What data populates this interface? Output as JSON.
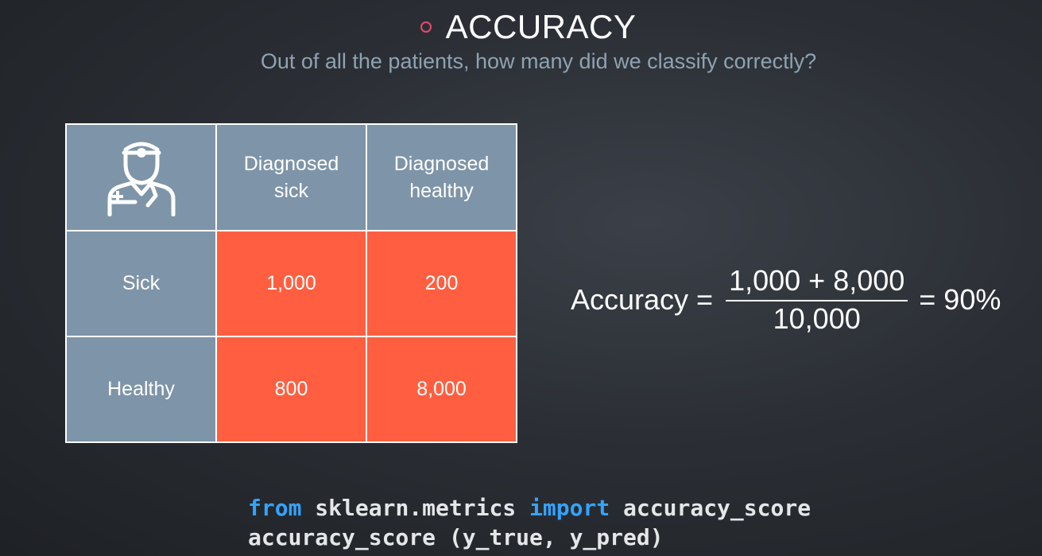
{
  "slide": {
    "title": "ACCURACY",
    "subtitle": "Out of all the patients, how many did we classify correctly?",
    "bullet_color": "#e8496b"
  },
  "matrix": {
    "corner_icon": "doctor-icon",
    "col_headers": [
      [
        "Diagnosed",
        "sick"
      ],
      [
        "Diagnosed",
        "healthy"
      ]
    ],
    "rows": [
      {
        "label": "Sick",
        "values": [
          "1,000",
          "200"
        ]
      },
      {
        "label": "Healthy",
        "values": [
          "800",
          "8,000"
        ]
      }
    ],
    "header_color": "#7e94a8",
    "cell_color": "#ff5f40"
  },
  "formula": {
    "label": "Accuracy =",
    "numerator": "1,000 + 8,000",
    "denominator": "10,000",
    "result": "= 90%"
  },
  "code": {
    "line1": {
      "kw_from": "from",
      "module": "sklearn.metrics",
      "kw_import": "import",
      "name": "accuracy_score"
    },
    "line2": "accuracy_score (y_true, y_pred)"
  }
}
